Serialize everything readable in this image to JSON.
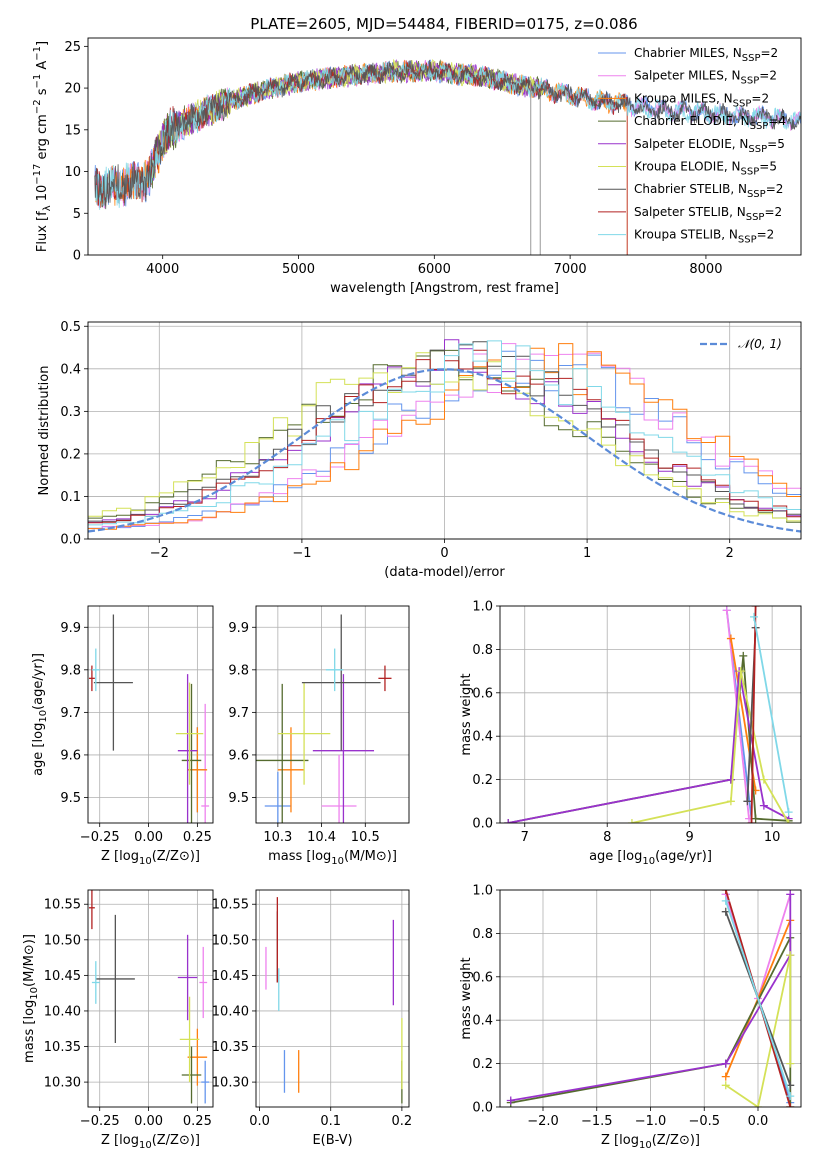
{
  "title": "PLATE=2605, MJD=54484, FIBERID=0175, z=0.086",
  "colors": {
    "Chabrier MILES": "#6495ed",
    "Salpeter MILES": "#ee82ee",
    "Kroupa MILES": "#ff7f0e",
    "Chabrier ELODIE": "#556b2f",
    "Salpeter ELODIE": "#9932cc",
    "Kroupa ELODIE": "#d4e157",
    "Chabrier STELIB": "#555555",
    "Salpeter STELIB": "#b22222",
    "Kroupa STELIB": "#80d8e8",
    "gaussian": "#5b8bd8"
  },
  "models": [
    "Chabrier MILES",
    "Salpeter MILES",
    "Kroupa MILES",
    "Chabrier ELODIE",
    "Salpeter ELODIE",
    "Kroupa ELODIE",
    "Chabrier STELIB",
    "Salpeter STELIB",
    "Kroupa STELIB"
  ],
  "chart_data": [
    {
      "panel": "spectrum",
      "type": "line",
      "xlabel": "wavelength [Angstrom, rest frame]",
      "ylabel": "Flux [f_λ 10^-17 erg cm^-2 s^-1 A^-1]",
      "xlim": [
        3450,
        8700
      ],
      "ylim": [
        0,
        26
      ],
      "xticks": [
        4000,
        5000,
        6000,
        7000,
        8000
      ],
      "yticks": [
        0,
        5,
        10,
        15,
        20,
        25
      ],
      "legend": [
        {
          "name": "Chabrier MILES, N",
          "sub": "SSP",
          "suffix": "=2"
        },
        {
          "name": "Salpeter MILES, N",
          "sub": "SSP",
          "suffix": "=2"
        },
        {
          "name": "Kroupa MILES, N",
          "sub": "SSP",
          "suffix": "=2"
        },
        {
          "name": "Chabrier ELODIE, N",
          "sub": "SSP",
          "suffix": "=4"
        },
        {
          "name": "Salpeter ELODIE, N",
          "sub": "SSP",
          "suffix": "=5"
        },
        {
          "name": "Kroupa ELODIE, N",
          "sub": "SSP",
          "suffix": "=5"
        },
        {
          "name": "Chabrier STELIB, N",
          "sub": "SSP",
          "suffix": "=2"
        },
        {
          "name": "Salpeter STELIB, N",
          "sub": "SSP",
          "suffix": "=2"
        },
        {
          "name": "Kroupa STELIB, N",
          "sub": "SSP",
          "suffix": "=2"
        }
      ],
      "continuum": [
        [
          3500,
          8
        ],
        [
          3700,
          8.5
        ],
        [
          3900,
          9
        ],
        [
          3950,
          12
        ],
        [
          4050,
          15
        ],
        [
          4300,
          17
        ],
        [
          4500,
          18.5
        ],
        [
          4800,
          20
        ],
        [
          5100,
          21
        ],
        [
          5400,
          21.5
        ],
        [
          5700,
          22
        ],
        [
          6000,
          22
        ],
        [
          6300,
          21.5
        ],
        [
          6600,
          20.5
        ],
        [
          6900,
          19.5
        ],
        [
          7200,
          18.5
        ],
        [
          7600,
          17.5
        ],
        [
          8000,
          17
        ],
        [
          8400,
          16.5
        ],
        [
          8700,
          16
        ]
      ]
    },
    {
      "panel": "residual histogram",
      "type": "histogram",
      "xlabel": "(data-model)/error",
      "ylabel": "Normed distribution",
      "xlim": [
        -2.5,
        2.5
      ],
      "ylim": [
        0,
        0.51
      ],
      "xticks": [
        -2,
        -1,
        0,
        1,
        2
      ],
      "yticks": [
        0.0,
        0.1,
        0.2,
        0.3,
        0.4,
        0.5
      ],
      "legend": "𝒩(0, 1)",
      "gaussian": {
        "mean": 0,
        "sigma": 1
      },
      "bin_width": 0.1,
      "model_shift": [
        0.6,
        0.65,
        0.7,
        -0.05,
        0.15,
        -0.1,
        0.1,
        0.2,
        0.35
      ]
    },
    {
      "panel": "age vs Z",
      "type": "errorbar",
      "xlabel": "Z [log10(Z/Z⊙)]",
      "ylabel": "age [log10(age/yr)]",
      "xlim": [
        -0.31,
        0.33
      ],
      "ylim": [
        9.44,
        9.95
      ],
      "xticks": [
        -0.25,
        0.0,
        0.25
      ],
      "yticks": [
        9.5,
        9.6,
        9.7,
        9.8,
        9.9
      ],
      "points": [
        {
          "model": "Chabrier MILES",
          "x": 0.25,
          "y": 9.565,
          "xerr": 0.04,
          "yerr": 0.1
        },
        {
          "model": "Salpeter MILES",
          "x": 0.29,
          "y": 9.48,
          "xerr": 0.02,
          "yerr": 0.24
        },
        {
          "model": "Kroupa MILES",
          "x": 0.25,
          "y": 9.565,
          "xerr": 0.05,
          "yerr": 0.1
        },
        {
          "model": "Chabrier ELODIE",
          "x": 0.22,
          "y": 9.587,
          "xerr": 0.05,
          "yerr": 0.18
        },
        {
          "model": "Salpeter ELODIE",
          "x": 0.2,
          "y": 9.61,
          "xerr": 0.05,
          "yerr": 0.18
        },
        {
          "model": "Kroupa ELODIE",
          "x": 0.21,
          "y": 9.65,
          "xerr": 0.07,
          "yerr": 0.12
        },
        {
          "model": "Chabrier STELIB",
          "x": -0.18,
          "y": 9.77,
          "xerr": 0.1,
          "yerr": 0.16
        },
        {
          "model": "Salpeter STELIB",
          "x": -0.29,
          "y": 9.78,
          "xerr": 0.015,
          "yerr": 0.03
        },
        {
          "model": "Kroupa STELIB",
          "x": -0.27,
          "y": 9.8,
          "xerr": 0.02,
          "yerr": 0.05
        }
      ]
    },
    {
      "panel": "age vs mass",
      "type": "errorbar",
      "xlabel": "mass [log10(M/M⊙)]",
      "ylabel": "",
      "xlim": [
        10.25,
        10.6
      ],
      "ylim": [
        9.44,
        9.95
      ],
      "xticks": [
        10.3,
        10.4,
        10.5
      ],
      "yticks": [
        9.5,
        9.6,
        9.7,
        9.8,
        9.9
      ],
      "points": [
        {
          "model": "Chabrier MILES",
          "x": 10.3,
          "y": 9.48,
          "xerr": 0.03,
          "yerr": 0.08
        },
        {
          "model": "Salpeter MILES",
          "x": 10.44,
          "y": 9.48,
          "xerr": 0.04,
          "yerr": 0.12
        },
        {
          "model": "Kroupa MILES",
          "x": 10.33,
          "y": 9.565,
          "xerr": 0.03,
          "yerr": 0.1
        },
        {
          "model": "Chabrier ELODIE",
          "x": 10.31,
          "y": 9.587,
          "xerr": 0.06,
          "yerr": 0.18
        },
        {
          "model": "Salpeter ELODIE",
          "x": 10.45,
          "y": 9.61,
          "xerr": 0.07,
          "yerr": 0.18
        },
        {
          "model": "Kroupa ELODIE",
          "x": 10.36,
          "y": 9.65,
          "xerr": 0.06,
          "yerr": 0.12
        },
        {
          "model": "Chabrier STELIB",
          "x": 10.445,
          "y": 9.77,
          "xerr": 0.09,
          "yerr": 0.16
        },
        {
          "model": "Salpeter STELIB",
          "x": 10.545,
          "y": 9.78,
          "xerr": 0.015,
          "yerr": 0.03
        },
        {
          "model": "Kroupa STELIB",
          "x": 10.43,
          "y": 9.8,
          "xerr": 0.02,
          "yerr": 0.05
        }
      ]
    },
    {
      "panel": "mass weight vs age",
      "type": "line",
      "xlabel": "age [log10(age/yr)]",
      "ylabel": "mass weight",
      "xlim": [
        6.7,
        10.35
      ],
      "ylim": [
        0,
        1
      ],
      "xticks": [
        7,
        8,
        9,
        10
      ],
      "yticks": [
        0.0,
        0.2,
        0.4,
        0.6,
        0.8,
        1.0
      ],
      "series": [
        {
          "model": "Chabrier MILES",
          "x": [
            9.45,
            9.75
          ],
          "y": [
            0.98,
            0.02
          ]
        },
        {
          "model": "Salpeter MILES",
          "x": [
            9.45,
            9.72
          ],
          "y": [
            0.98,
            0.02
          ]
        },
        {
          "model": "Kroupa MILES",
          "x": [
            9.5,
            9.8
          ],
          "y": [
            0.85,
            0.15
          ]
        },
        {
          "model": "Chabrier ELODIE",
          "x": [
            6.8,
            9.5,
            9.65,
            9.8,
            10.2
          ],
          "y": [
            0.0,
            0.2,
            0.77,
            0.02,
            0.01
          ]
        },
        {
          "model": "Salpeter ELODIE",
          "x": [
            6.8,
            9.5,
            9.6,
            9.9,
            10.2
          ],
          "y": [
            0.0,
            0.2,
            0.7,
            0.08,
            0.02
          ]
        },
        {
          "model": "Kroupa ELODIE",
          "x": [
            8.3,
            9.5,
            9.62,
            9.9,
            10.2
          ],
          "y": [
            0.0,
            0.1,
            0.7,
            0.2,
            0.0
          ]
        },
        {
          "model": "Chabrier STELIB",
          "x": [
            9.7,
            9.8
          ],
          "y": [
            0.1,
            0.9
          ]
        },
        {
          "model": "Salpeter STELIB",
          "x": [
            9.75,
            9.8
          ],
          "y": [
            0.0,
            1.0
          ]
        },
        {
          "model": "Kroupa STELIB",
          "x": [
            9.78,
            10.2
          ],
          "y": [
            0.95,
            0.05
          ]
        }
      ]
    },
    {
      "panel": "mass vs Z",
      "type": "errorbar",
      "xlabel": "Z [log10(Z/Z⊙)]",
      "ylabel": "mass [log10(M/M⊙)]",
      "xlim": [
        -0.31,
        0.33
      ],
      "ylim": [
        10.265,
        10.57
      ],
      "xticks": [
        -0.25,
        0.0,
        0.25
      ],
      "yticks": [
        10.3,
        10.35,
        10.4,
        10.45,
        10.5,
        10.55
      ],
      "points": [
        {
          "model": "Chabrier MILES",
          "x": 0.29,
          "y": 10.3,
          "xerr": 0.02,
          "yerr": 0.03
        },
        {
          "model": "Salpeter MILES",
          "x": 0.28,
          "y": 10.44,
          "xerr": 0.02,
          "yerr": 0.05
        },
        {
          "model": "Kroupa MILES",
          "x": 0.25,
          "y": 10.335,
          "xerr": 0.05,
          "yerr": 0.04
        },
        {
          "model": "Chabrier ELODIE",
          "x": 0.22,
          "y": 10.31,
          "xerr": 0.05,
          "yerr": 0.04
        },
        {
          "model": "Salpeter ELODIE",
          "x": 0.2,
          "y": 10.447,
          "xerr": 0.05,
          "yerr": 0.06
        },
        {
          "model": "Kroupa ELODIE",
          "x": 0.21,
          "y": 10.36,
          "xerr": 0.05,
          "yerr": 0.06
        },
        {
          "model": "Chabrier STELIB",
          "x": -0.17,
          "y": 10.445,
          "xerr": 0.1,
          "yerr": 0.09
        },
        {
          "model": "Salpeter STELIB",
          "x": -0.29,
          "y": 10.545,
          "xerr": 0.015,
          "yerr": 0.03
        },
        {
          "model": "Kroupa STELIB",
          "x": -0.27,
          "y": 10.44,
          "xerr": 0.02,
          "yerr": 0.03
        }
      ]
    },
    {
      "panel": "mass vs E(B-V)",
      "type": "errorbar",
      "xlabel": "E(B-V)",
      "ylabel": "",
      "xlim": [
        -0.005,
        0.21
      ],
      "ylim": [
        10.265,
        10.57
      ],
      "xticks": [
        0.0,
        0.1,
        0.2
      ],
      "yticks": [
        10.3,
        10.35,
        10.4,
        10.45,
        10.5,
        10.55
      ],
      "points": [
        {
          "model": "Chabrier MILES",
          "x": 0.035,
          "y": 10.315,
          "xerr": 0,
          "yerr": 0.03
        },
        {
          "model": "Salpeter MILES",
          "x": 0.009,
          "y": 10.46,
          "xerr": 0,
          "yerr": 0.03
        },
        {
          "model": "Kroupa MILES",
          "x": 0.055,
          "y": 10.315,
          "xerr": 0,
          "yerr": 0.03
        },
        {
          "model": "Chabrier ELODIE",
          "x": 0.2,
          "y": 10.3,
          "xerr": 0,
          "yerr": 0.03
        },
        {
          "model": "Salpeter ELODIE",
          "x": 0.188,
          "y": 10.468,
          "xerr": 0,
          "yerr": 0.06
        },
        {
          "model": "Kroupa ELODIE",
          "x": 0.2,
          "y": 10.34,
          "xerr": 0,
          "yerr": 0.05
        },
        {
          "model": "Chabrier STELIB",
          "x": 0.025,
          "y": 10.49,
          "xerr": 0,
          "yerr": 0.05
        },
        {
          "model": "Salpeter STELIB",
          "x": 0.025,
          "y": 10.5,
          "xerr": 0,
          "yerr": 0.06
        },
        {
          "model": "Kroupa STELIB",
          "x": 0.027,
          "y": 10.43,
          "xerr": 0,
          "yerr": 0.03
        }
      ]
    },
    {
      "panel": "mass weight vs Z",
      "type": "line",
      "xlabel": "Z [log10(Z/Z⊙)]",
      "ylabel": "mass weight",
      "xlim": [
        -2.4,
        0.4
      ],
      "ylim": [
        0,
        1
      ],
      "xticks": [
        -2.0,
        -1.5,
        -1.0,
        -0.5,
        0.0
      ],
      "yticks": [
        0.0,
        0.2,
        0.4,
        0.6,
        0.8,
        1.0
      ],
      "series": [
        {
          "model": "Chabrier MILES",
          "x": [
            -0.3,
            0.3
          ],
          "y": [
            0.98,
            0.02
          ]
        },
        {
          "model": "Salpeter MILES",
          "x": [
            -0.3,
            0.0,
            0.3
          ],
          "y": [
            0.98,
            0.5,
            0.98
          ]
        },
        {
          "model": "Kroupa MILES",
          "x": [
            -0.3,
            0.3
          ],
          "y": [
            0.14,
            0.86
          ]
        },
        {
          "model": "Chabrier ELODIE",
          "x": [
            -2.3,
            -0.3,
            0.3,
            0.3
          ],
          "y": [
            0.02,
            0.2,
            0.78,
            0.0
          ]
        },
        {
          "model": "Salpeter ELODIE",
          "x": [
            -2.3,
            -0.3,
            0.3,
            0.3
          ],
          "y": [
            0.03,
            0.2,
            0.7,
            0.98
          ]
        },
        {
          "model": "Kroupa ELODIE",
          "x": [
            -0.3,
            0.0,
            0.3,
            0.3
          ],
          "y": [
            0.1,
            0.0,
            0.7,
            0.2
          ]
        },
        {
          "model": "Chabrier STELIB",
          "x": [
            -0.3,
            0.3
          ],
          "y": [
            0.9,
            0.1
          ]
        },
        {
          "model": "Salpeter STELIB",
          "x": [
            -0.3,
            0.3
          ],
          "y": [
            1.0,
            0.0
          ]
        },
        {
          "model": "Kroupa STELIB",
          "x": [
            -0.3,
            0.3
          ],
          "y": [
            0.95,
            0.05
          ]
        }
      ]
    }
  ]
}
